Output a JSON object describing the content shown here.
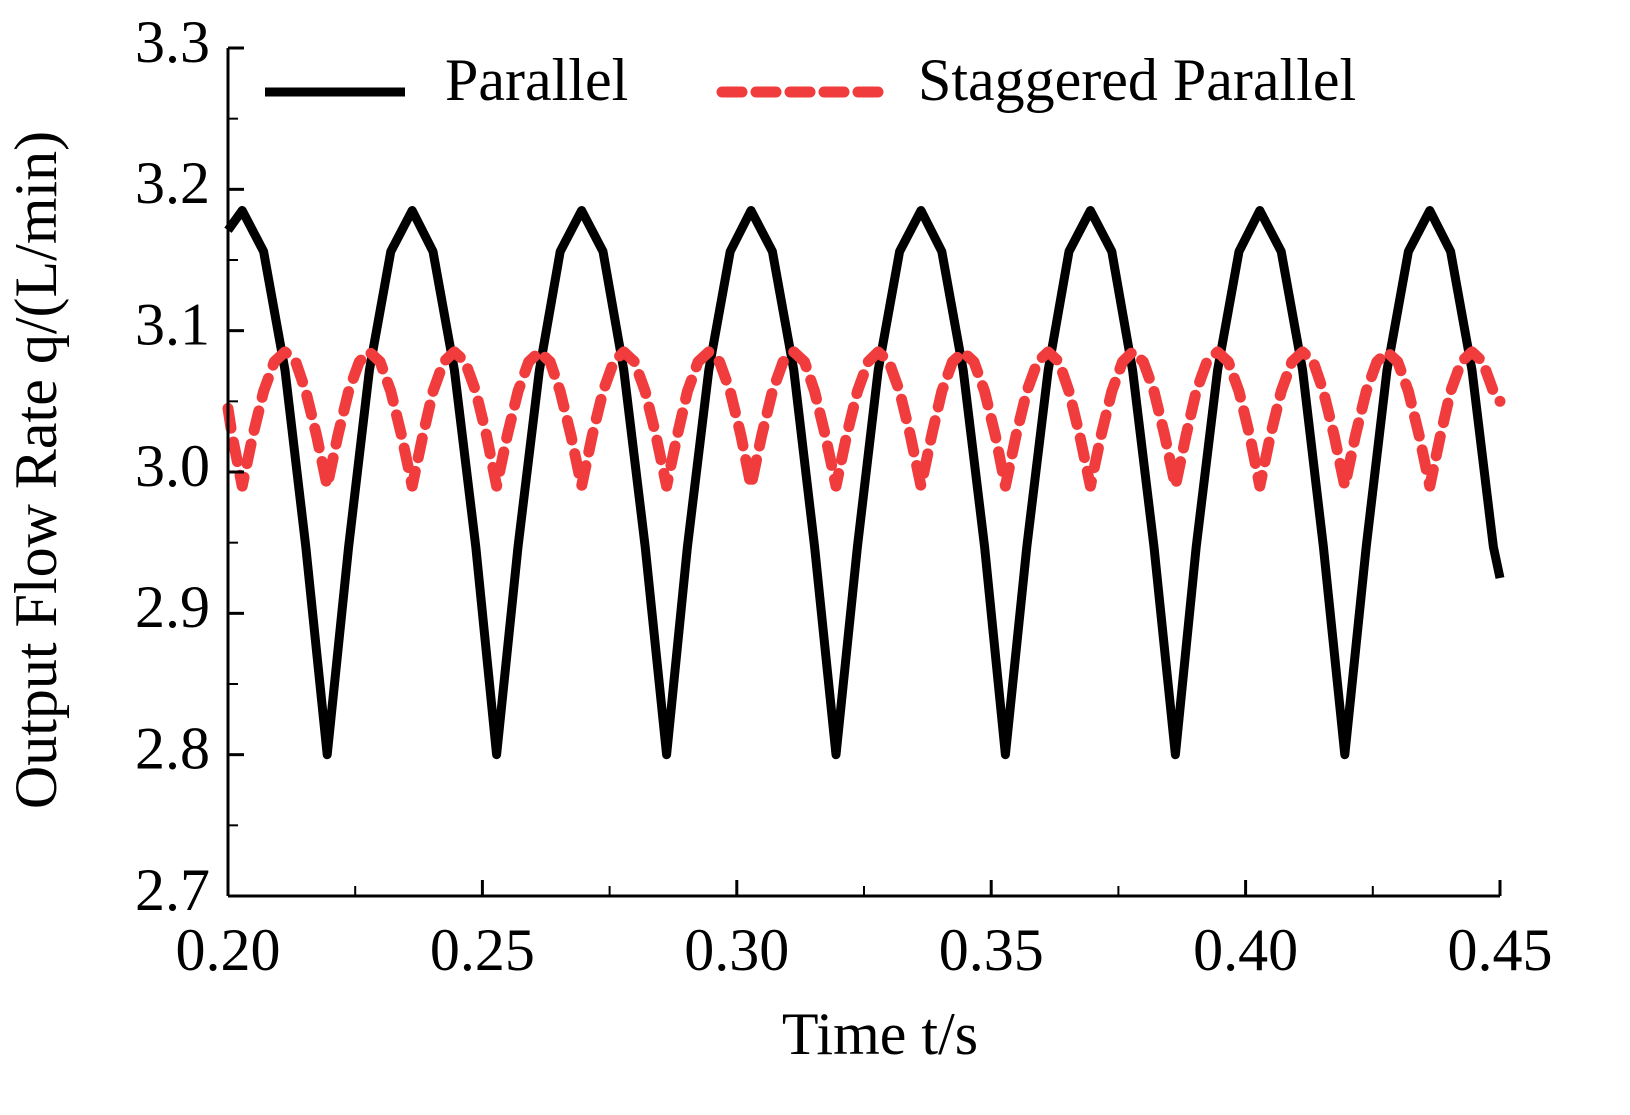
{
  "chart_data": {
    "type": "line",
    "xlabel": "Time t/s",
    "ylabel": "Output Flow Rate  q/(L/min)",
    "xlim": [
      0.2,
      0.45
    ],
    "ylim": [
      2.7,
      3.3
    ],
    "xticks": [
      {
        "value": 0.2,
        "label": "0.20"
      },
      {
        "value": 0.25,
        "label": "0.25"
      },
      {
        "value": 0.3,
        "label": "0.30"
      },
      {
        "value": 0.35,
        "label": "0.35"
      },
      {
        "value": 0.4,
        "label": "0.40"
      },
      {
        "value": 0.45,
        "label": "0.45"
      }
    ],
    "xminorticks": [
      0.225,
      0.275,
      0.325,
      0.375,
      0.425
    ],
    "yticks": [
      2.7,
      2.8,
      2.9,
      {
        "value": 3,
        "label": "3.0"
      },
      3.1,
      3.2,
      3.3
    ],
    "yminorticks": [
      2.75,
      2.85,
      2.95,
      3.05,
      3.15,
      3.25
    ],
    "legend": "top",
    "series": [
      {
        "name": "Parallel",
        "color": "#000000",
        "dash": false,
        "x": [
          0.2,
          0.2028,
          0.207,
          0.2112,
          0.2153,
          0.2195,
          0.2237,
          0.2278,
          0.232,
          0.2362,
          0.2403,
          0.2445,
          0.2487,
          0.2528,
          0.257,
          0.2612,
          0.2653,
          0.2695,
          0.2737,
          0.2778,
          0.282,
          0.2862,
          0.2903,
          0.2945,
          0.2987,
          0.3028,
          0.307,
          0.3112,
          0.3153,
          0.3195,
          0.3237,
          0.3278,
          0.332,
          0.3362,
          0.3403,
          0.3445,
          0.3487,
          0.3528,
          0.357,
          0.3612,
          0.3653,
          0.3695,
          0.3737,
          0.3778,
          0.382,
          0.3862,
          0.3903,
          0.3945,
          0.3987,
          0.4028,
          0.407,
          0.4112,
          0.4153,
          0.4195,
          0.4237,
          0.4278,
          0.432,
          0.4362,
          0.4403,
          0.4445,
          0.4487,
          0.45
        ],
        "values": [
          3.171,
          3.185,
          3.156,
          3.072,
          2.947,
          2.8,
          2.947,
          3.072,
          3.156,
          3.185,
          3.156,
          3.072,
          2.947,
          2.8,
          2.947,
          3.072,
          3.156,
          3.185,
          3.156,
          3.072,
          2.947,
          2.8,
          2.947,
          3.072,
          3.156,
          3.185,
          3.156,
          3.072,
          2.947,
          2.8,
          2.947,
          3.072,
          3.156,
          3.185,
          3.156,
          3.072,
          2.947,
          2.8,
          2.947,
          3.072,
          3.156,
          3.185,
          3.156,
          3.072,
          2.947,
          2.8,
          2.947,
          3.072,
          3.156,
          3.185,
          3.156,
          3.072,
          2.947,
          2.8,
          2.947,
          3.072,
          3.156,
          3.185,
          3.156,
          3.072,
          2.947,
          2.925
        ]
      },
      {
        "name": "Staggered Parallel",
        "color": "#f03c3c",
        "dash": true,
        "x": [
          0.2,
          0.2008,
          0.2028,
          0.2049,
          0.207,
          0.2091,
          0.2112,
          0.2133,
          0.2153,
          0.2174,
          0.2195,
          0.2216,
          0.2237,
          0.2258,
          0.2278,
          0.2299,
          0.232,
          0.2341,
          0.2362,
          0.2383,
          0.2403,
          0.2424,
          0.2445,
          0.2466,
          0.2487,
          0.2508,
          0.2528,
          0.2549,
          0.257,
          0.2591,
          0.2612,
          0.2633,
          0.2653,
          0.2674,
          0.2695,
          0.2716,
          0.2737,
          0.2758,
          0.2778,
          0.2799,
          0.282,
          0.2841,
          0.2862,
          0.2883,
          0.2903,
          0.2924,
          0.2945,
          0.2966,
          0.2987,
          0.3008,
          0.3028,
          0.3049,
          0.307,
          0.3091,
          0.3112,
          0.3133,
          0.3153,
          0.3174,
          0.3195,
          0.3216,
          0.3237,
          0.3258,
          0.3278,
          0.3299,
          0.332,
          0.3341,
          0.3362,
          0.3383,
          0.3403,
          0.3424,
          0.3445,
          0.3466,
          0.3487,
          0.3508,
          0.3528,
          0.3549,
          0.357,
          0.3591,
          0.3612,
          0.3633,
          0.3653,
          0.3674,
          0.3695,
          0.3716,
          0.3737,
          0.3758,
          0.3778,
          0.3799,
          0.382,
          0.3841,
          0.3862,
          0.3883,
          0.3903,
          0.3924,
          0.3945,
          0.3966,
          0.3987,
          0.4008,
          0.4028,
          0.4049,
          0.407,
          0.4091,
          0.4112,
          0.4133,
          0.4153,
          0.4174,
          0.4195,
          0.4216,
          0.4237,
          0.4258,
          0.4278,
          0.4299,
          0.432,
          0.4341,
          0.4362,
          0.4383,
          0.4403,
          0.4424,
          0.4445,
          0.4466,
          0.4487,
          0.45
        ],
        "values": [
          3.045,
          3.026,
          2.99,
          3.026,
          3.057,
          3.078,
          3.085,
          3.078,
          3.057,
          3.026,
          2.99,
          3.026,
          3.057,
          3.078,
          3.085,
          3.078,
          3.057,
          3.026,
          2.99,
          3.026,
          3.057,
          3.078,
          3.085,
          3.078,
          3.057,
          3.026,
          2.99,
          3.026,
          3.057,
          3.078,
          3.085,
          3.078,
          3.057,
          3.026,
          2.99,
          3.026,
          3.057,
          3.078,
          3.085,
          3.078,
          3.057,
          3.026,
          2.99,
          3.026,
          3.057,
          3.078,
          3.085,
          3.078,
          3.057,
          3.026,
          2.99,
          3.026,
          3.057,
          3.078,
          3.085,
          3.078,
          3.057,
          3.026,
          2.99,
          3.026,
          3.057,
          3.078,
          3.085,
          3.078,
          3.057,
          3.026,
          2.99,
          3.026,
          3.057,
          3.078,
          3.085,
          3.078,
          3.057,
          3.026,
          2.99,
          3.026,
          3.057,
          3.078,
          3.085,
          3.078,
          3.057,
          3.026,
          2.99,
          3.026,
          3.057,
          3.078,
          3.085,
          3.078,
          3.057,
          3.026,
          2.99,
          3.026,
          3.057,
          3.078,
          3.085,
          3.078,
          3.057,
          3.026,
          2.99,
          3.026,
          3.057,
          3.078,
          3.085,
          3.078,
          3.057,
          3.026,
          2.99,
          3.026,
          3.057,
          3.078,
          3.085,
          3.078,
          3.057,
          3.026,
          2.99,
          3.026,
          3.057,
          3.078,
          3.085,
          3.078,
          3.057,
          3.05
        ]
      }
    ]
  }
}
